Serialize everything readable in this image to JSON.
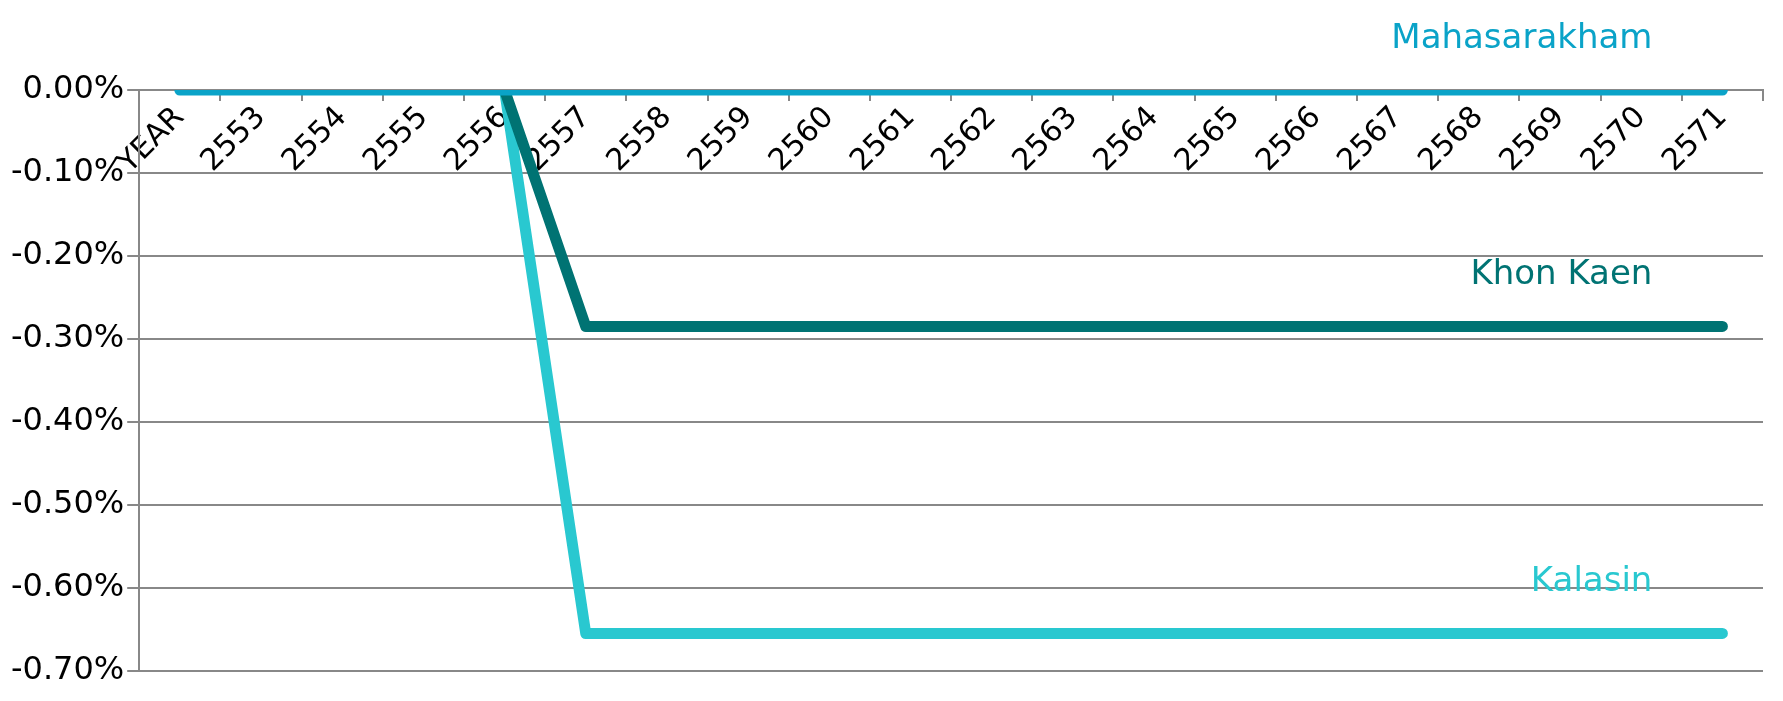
{
  "chart_data": {
    "type": "line",
    "categories": [
      "YEAR",
      "2553",
      "2554",
      "2555",
      "2556",
      "2557",
      "2558",
      "2559",
      "2560",
      "2561",
      "2562",
      "2563",
      "2564",
      "2565",
      "2566",
      "2567",
      "2568",
      "2569",
      "2570",
      "2571"
    ],
    "series": [
      {
        "name": "Mahasarakham",
        "color": "#0aa3c8",
        "values": [
          0,
          0,
          0,
          0,
          0,
          0,
          0,
          0,
          0,
          0,
          0,
          0,
          0,
          0,
          0,
          0,
          0,
          0,
          0,
          0
        ]
      },
      {
        "name": "Khon Kaen",
        "color": "#007373",
        "values": [
          null,
          null,
          null,
          null,
          0,
          -0.285,
          -0.285,
          -0.285,
          -0.285,
          -0.285,
          -0.285,
          -0.285,
          -0.285,
          -0.285,
          -0.285,
          -0.285,
          -0.285,
          -0.285,
          -0.285,
          -0.285
        ]
      },
      {
        "name": "Kalasin",
        "color": "#29c8d0",
        "values": [
          null,
          null,
          null,
          null,
          0,
          -0.655,
          -0.655,
          -0.655,
          -0.655,
          -0.655,
          -0.655,
          -0.655,
          -0.655,
          -0.655,
          -0.655,
          -0.655,
          -0.655,
          -0.655,
          -0.655,
          -0.655
        ]
      }
    ],
    "ylim": [
      -0.7,
      0
    ],
    "yticks": [
      {
        "value": 0,
        "label": "0.00%"
      },
      {
        "value": -0.1,
        "label": "-0.10%"
      },
      {
        "value": -0.2,
        "label": "-0.20%"
      },
      {
        "value": -0.3,
        "label": "-0.30%"
      },
      {
        "value": -0.4,
        "label": "-0.40%"
      },
      {
        "value": -0.5,
        "label": "-0.50%"
      },
      {
        "value": -0.6,
        "label": "-0.60%"
      },
      {
        "value": -0.7,
        "label": "-0.70%"
      }
    ],
    "grid": "y",
    "legend": false,
    "marker": "none",
    "line_style": "solid"
  }
}
